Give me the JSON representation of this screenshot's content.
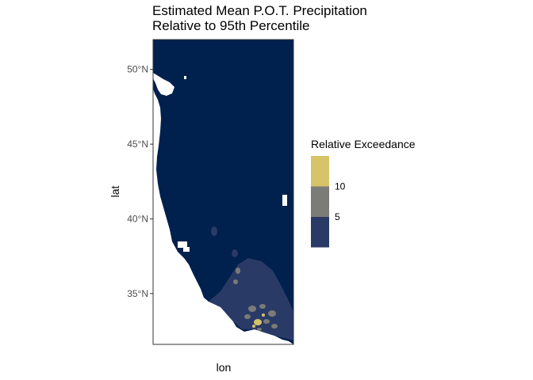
{
  "chart_data": {
    "type": "heatmap",
    "title": "Estimated Mean P.O.T. Precipitation",
    "subtitle": "Relative to 95th Percentile",
    "xlabel": "lon",
    "ylabel": "lat",
    "ylim": [
      31.6,
      52.0
    ],
    "y_ticks": [
      {
        "value": 50,
        "label": "50°N"
      },
      {
        "value": 45,
        "label": "45°N"
      },
      {
        "value": 40,
        "label": "40°N"
      },
      {
        "value": 35,
        "label": "35°N"
      }
    ],
    "x_ticks": [],
    "grid": false,
    "legend": {
      "title": "Relative Exceedance",
      "position": "right",
      "breaks": [
        {
          "value": 10,
          "label": "10"
        },
        {
          "value": 5,
          "label": "5"
        }
      ],
      "bins": [
        {
          "range": [
            10,
            15
          ],
          "color": "#d6c36a"
        },
        {
          "range": [
            5,
            10
          ],
          "color": "#7b7b78"
        },
        {
          "range": [
            0,
            5
          ],
          "color": "#2a3a66"
        }
      ]
    },
    "colors": {
      "background": "#00204d",
      "low": "#2a3a66",
      "mid": "#7b7b78",
      "high": "#d6c36a",
      "no_data": "#ffffff"
    }
  }
}
